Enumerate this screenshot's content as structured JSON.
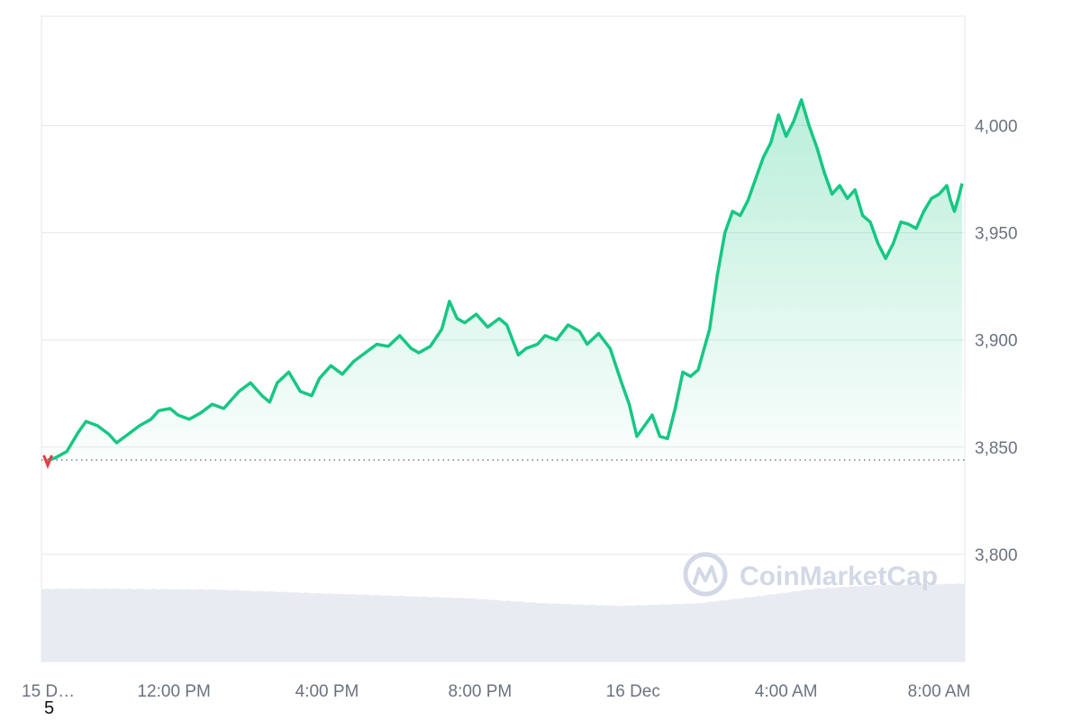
{
  "watermark": {
    "text": "CoinMarketCap"
  },
  "footnote": "5",
  "colors": {
    "line": "#16c784",
    "area_top": "#16c784",
    "grid": "#e5e7eb",
    "volume": "#e8ebf1",
    "baseline": "#6b7280",
    "start_marker": "#ea3943"
  },
  "chart_data": {
    "type": "area",
    "title": "",
    "xlabel": "",
    "ylabel": "",
    "ylim": [
      3750,
      4051
    ],
    "yticks": [
      3800,
      3850,
      3900,
      3950,
      4000
    ],
    "ytick_labels": [
      "3,800",
      "3,850",
      "3,900",
      "3,950",
      "4,000"
    ],
    "xticks": [
      {
        "hour": 0,
        "label": "15 D…"
      },
      {
        "hour": 3.3,
        "label": "12:00 PM"
      },
      {
        "hour": 7.3,
        "label": "4:00 PM"
      },
      {
        "hour": 11.3,
        "label": "8:00 PM"
      },
      {
        "hour": 15.3,
        "label": "16 Dec"
      },
      {
        "hour": 19.3,
        "label": "4:00 AM"
      },
      {
        "hour": 23.3,
        "label": "8:00 AM"
      }
    ],
    "x_range_hours": [
      0,
      23.9
    ],
    "open_value": 3844,
    "grid": true,
    "series": [
      {
        "values": [
          [
            0.0,
            3844
          ],
          [
            0.2,
            3845
          ],
          [
            0.5,
            3848
          ],
          [
            0.8,
            3857
          ],
          [
            1.0,
            3862
          ],
          [
            1.3,
            3860
          ],
          [
            1.6,
            3856
          ],
          [
            1.8,
            3852
          ],
          [
            2.1,
            3856
          ],
          [
            2.4,
            3860
          ],
          [
            2.7,
            3863
          ],
          [
            2.9,
            3867
          ],
          [
            3.2,
            3868
          ],
          [
            3.4,
            3865
          ],
          [
            3.7,
            3863
          ],
          [
            4.0,
            3866
          ],
          [
            4.3,
            3870
          ],
          [
            4.6,
            3868
          ],
          [
            4.8,
            3872
          ],
          [
            5.0,
            3876
          ],
          [
            5.3,
            3880
          ],
          [
            5.6,
            3874
          ],
          [
            5.8,
            3871
          ],
          [
            6.0,
            3880
          ],
          [
            6.3,
            3885
          ],
          [
            6.6,
            3876
          ],
          [
            6.9,
            3874
          ],
          [
            7.1,
            3882
          ],
          [
            7.4,
            3888
          ],
          [
            7.7,
            3884
          ],
          [
            8.0,
            3890
          ],
          [
            8.3,
            3894
          ],
          [
            8.6,
            3898
          ],
          [
            8.9,
            3897
          ],
          [
            9.2,
            3902
          ],
          [
            9.5,
            3896
          ],
          [
            9.7,
            3894
          ],
          [
            10.0,
            3897
          ],
          [
            10.3,
            3905
          ],
          [
            10.5,
            3918
          ],
          [
            10.7,
            3910
          ],
          [
            10.9,
            3908
          ],
          [
            11.2,
            3912
          ],
          [
            11.5,
            3906
          ],
          [
            11.8,
            3910
          ],
          [
            12.0,
            3907
          ],
          [
            12.3,
            3893
          ],
          [
            12.5,
            3896
          ],
          [
            12.8,
            3898
          ],
          [
            13.0,
            3902
          ],
          [
            13.3,
            3900
          ],
          [
            13.6,
            3907
          ],
          [
            13.9,
            3904
          ],
          [
            14.1,
            3898
          ],
          [
            14.4,
            3903
          ],
          [
            14.7,
            3896
          ],
          [
            15.0,
            3880
          ],
          [
            15.2,
            3870
          ],
          [
            15.4,
            3855
          ],
          [
            15.6,
            3860
          ],
          [
            15.8,
            3865
          ],
          [
            16.0,
            3855
          ],
          [
            16.2,
            3854
          ],
          [
            16.4,
            3868
          ],
          [
            16.6,
            3885
          ],
          [
            16.8,
            3883
          ],
          [
            17.0,
            3886
          ],
          [
            17.3,
            3905
          ],
          [
            17.5,
            3930
          ],
          [
            17.7,
            3950
          ],
          [
            17.9,
            3960
          ],
          [
            18.1,
            3958
          ],
          [
            18.3,
            3965
          ],
          [
            18.5,
            3975
          ],
          [
            18.7,
            3985
          ],
          [
            18.9,
            3992
          ],
          [
            19.1,
            4005
          ],
          [
            19.3,
            3995
          ],
          [
            19.5,
            4002
          ],
          [
            19.7,
            4012
          ],
          [
            19.9,
            4000
          ],
          [
            20.1,
            3990
          ],
          [
            20.3,
            3978
          ],
          [
            20.5,
            3968
          ],
          [
            20.7,
            3972
          ],
          [
            20.9,
            3966
          ],
          [
            21.1,
            3970
          ],
          [
            21.3,
            3958
          ],
          [
            21.5,
            3955
          ],
          [
            21.7,
            3945
          ],
          [
            21.9,
            3938
          ],
          [
            22.1,
            3945
          ],
          [
            22.3,
            3955
          ],
          [
            22.5,
            3954
          ],
          [
            22.7,
            3952
          ],
          [
            22.9,
            3960
          ],
          [
            23.1,
            3966
          ],
          [
            23.3,
            3968
          ],
          [
            23.5,
            3972
          ],
          [
            23.6,
            3965
          ],
          [
            23.7,
            3960
          ],
          [
            23.8,
            3966
          ],
          [
            23.9,
            3973
          ]
        ]
      }
    ],
    "volume": {
      "note_levels": [
        [
          0.0,
          0.85
        ],
        [
          2.0,
          0.85
        ],
        [
          4.5,
          0.84
        ],
        [
          7.0,
          0.8
        ],
        [
          9.0,
          0.77
        ],
        [
          11.0,
          0.74
        ],
        [
          13.0,
          0.68
        ],
        [
          15.0,
          0.65
        ],
        [
          17.0,
          0.68
        ],
        [
          18.5,
          0.76
        ],
        [
          20.0,
          0.85
        ],
        [
          21.5,
          0.89
        ],
        [
          23.9,
          0.91
        ]
      ]
    }
  }
}
